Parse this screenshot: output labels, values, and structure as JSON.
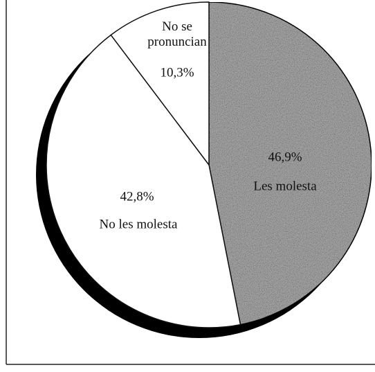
{
  "chart_data": {
    "type": "pie",
    "categories": [
      "Les molesta",
      "No les molesta",
      "No se pronuncian"
    ],
    "values": [
      46.9,
      42.8,
      10.3
    ],
    "value_labels": [
      "46,9%",
      "42,8%",
      "10,3%"
    ],
    "colors": [
      "#a3a3a3",
      "#ffffff",
      "#ffffff"
    ],
    "start_angle": 0,
    "direction": "clockwise"
  }
}
